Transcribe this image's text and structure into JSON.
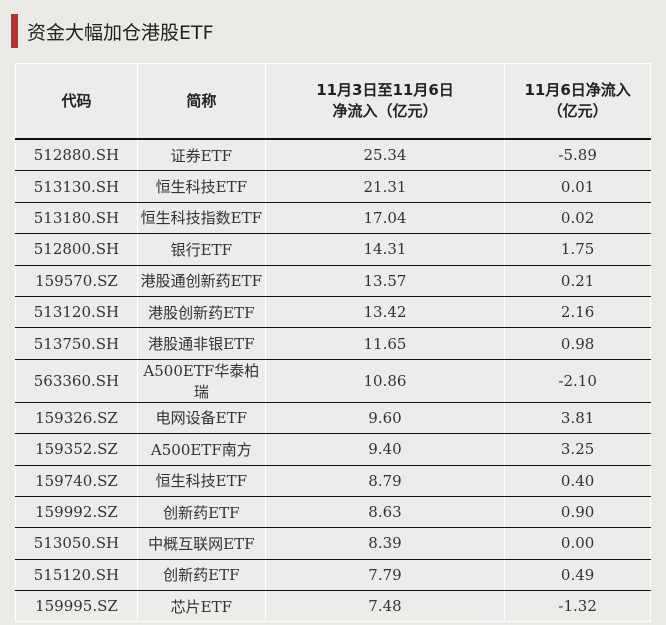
{
  "title": "资金大幅加仓港股ETF",
  "headers": [
    "代码",
    "简称",
    "11月3日至11月6日净流入（亿元）",
    "11月6日净流入（亿元）"
  ],
  "header_lines": [
    [
      "代码"
    ],
    [
      "简称"
    ],
    [
      "11月3日至11月6日",
      "净流入（亿元）"
    ],
    [
      "11月6日净流入",
      "（亿元）"
    ]
  ],
  "accent": "#b8312f",
  "rows": [
    [
      "512880.SH",
      "证券ETF",
      "25.34",
      "-5.89"
    ],
    [
      "513130.SH",
      "恒生科技ETF",
      "21.31",
      "0.01"
    ],
    [
      "513180.SH",
      "恒生科技指数ETF",
      "17.04",
      "0.02"
    ],
    [
      "512800.SH",
      "银行ETF",
      "14.31",
      "1.75"
    ],
    [
      "159570.SZ",
      "港股通创新药ETF",
      "13.57",
      "0.21"
    ],
    [
      "513120.SH",
      "港股创新药ETF",
      "13.42",
      "2.16"
    ],
    [
      "513750.SH",
      "港股通非银ETF",
      "11.65",
      "0.98"
    ],
    [
      "563360.SH",
      "A500ETF华泰柏瑞",
      "10.86",
      "-2.10"
    ],
    [
      "159326.SZ",
      "电网设备ETF",
      "9.60",
      "3.81"
    ],
    [
      "159352.SZ",
      "A500ETF南方",
      "9.40",
      "3.25"
    ],
    [
      "159740.SZ",
      "恒生科技ETF",
      "8.79",
      "0.40"
    ],
    [
      "159992.SZ",
      "创新药ETF",
      "8.63",
      "0.90"
    ],
    [
      "513050.SH",
      "中概互联网ETF",
      "8.39",
      "0.00"
    ],
    [
      "515120.SH",
      "创新药ETF",
      "7.79",
      "0.49"
    ],
    [
      "159995.SZ",
      "芯片ETF",
      "7.48",
      "-1.32"
    ]
  ]
}
